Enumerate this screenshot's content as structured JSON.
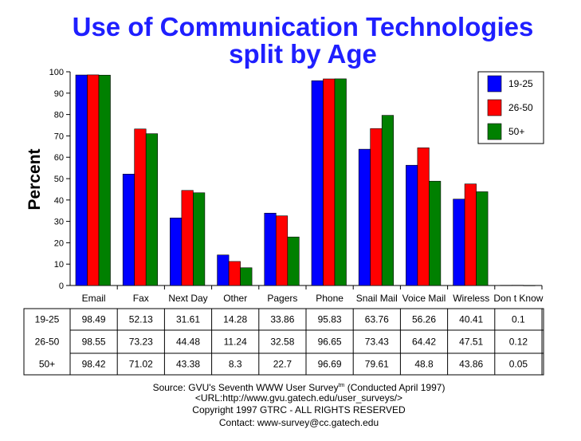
{
  "chart_data": {
    "type": "bar",
    "title": [
      "Use of Communication Technologies",
      "split by Age"
    ],
    "xlabel": "",
    "ylabel": "Percent",
    "ylim": [
      0,
      100
    ],
    "yticks": [
      0,
      10,
      20,
      30,
      40,
      50,
      60,
      70,
      80,
      90,
      100
    ],
    "categories": [
      "Email",
      "Fax",
      "Next Day",
      "Other",
      "Pagers",
      "Phone",
      "Snail Mail",
      "Voice Mail",
      "Wireless",
      "Don t Know"
    ],
    "series": [
      {
        "name": "19-25",
        "color": "#0000ff",
        "values": [
          98.49,
          52.13,
          31.61,
          14.28,
          33.86,
          95.83,
          63.76,
          56.26,
          40.41,
          0.1
        ]
      },
      {
        "name": "26-50",
        "color": "#ff0000",
        "values": [
          98.55,
          73.23,
          44.48,
          11.24,
          32.58,
          96.65,
          73.43,
          64.42,
          47.51,
          0.12
        ]
      },
      {
        "name": "50+",
        "color": "#008000",
        "values": [
          98.42,
          71.02,
          43.38,
          8.3,
          22.7,
          96.69,
          79.61,
          48.8,
          43.86,
          0.05
        ]
      }
    ],
    "table_values": [
      [
        "98.49",
        "52.13",
        "31.61",
        "14.28",
        "33.86",
        "95.83",
        "63.76",
        "56.26",
        "40.41",
        "0.1"
      ],
      [
        "98.55",
        "73.23",
        "44.48",
        "11.24",
        "32.58",
        "96.65",
        "73.43",
        "64.42",
        "47.51",
        "0.12"
      ],
      [
        "98.42",
        "71.02",
        "43.38",
        "8.3",
        "22.7",
        "96.69",
        "79.61",
        "48.8",
        "43.86",
        "0.05"
      ]
    ],
    "legend_position": "top-right",
    "grid": false
  },
  "footer": {
    "source": "Source: GVU's Seventh WWW User Survey",
    "tm": "tm",
    "conducted": " (Conducted April 1997)",
    "url": "<URL:http://www.gvu.gatech.edu/user_surveys/>",
    "copyright": "Copyright 1997 GTRC - ALL RIGHTS RESERVED",
    "contact": "Contact: www-survey@cc.gatech.edu"
  }
}
